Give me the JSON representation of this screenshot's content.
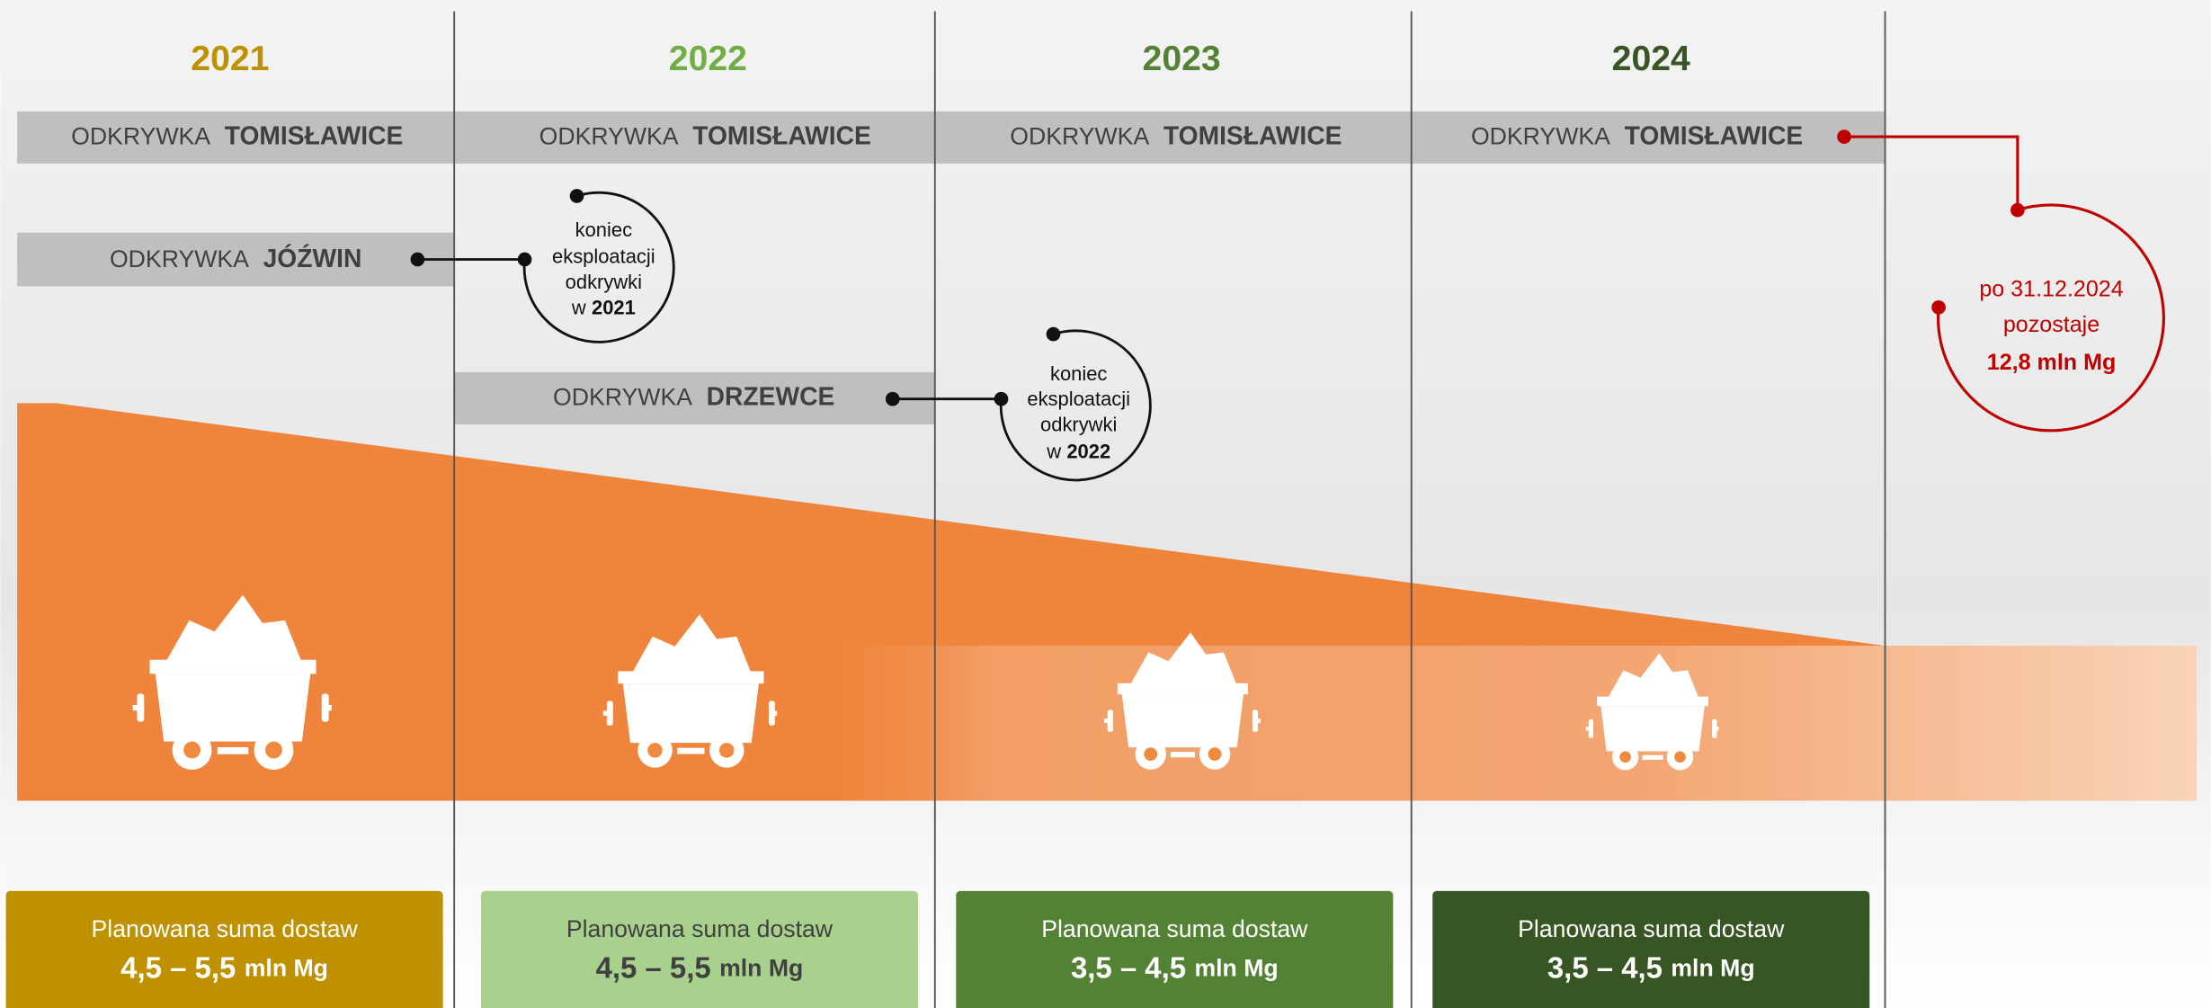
{
  "columns": [
    {
      "year": "2021",
      "mine_prefix": "ODKRYWKA",
      "mine_name": "TOMISŁAWICE",
      "planned_label": "Planowana suma dostaw",
      "planned_range": "4,5 – 5,5",
      "planned_unit": "mln Mg"
    },
    {
      "year": "2022",
      "mine_prefix": "ODKRYWKA",
      "mine_name": "TOMISŁAWICE",
      "planned_label": "Planowana suma dostaw",
      "planned_range": "4,5 – 5,5",
      "planned_unit": "mln Mg"
    },
    {
      "year": "2023",
      "mine_prefix": "ODKRYWKA",
      "mine_name": "TOMISŁAWICE",
      "planned_label": "Planowana suma dostaw",
      "planned_range": "3,5 – 4,5",
      "planned_unit": "mln Mg"
    },
    {
      "year": "2024",
      "mine_prefix": "ODKRYWKA",
      "mine_name": "TOMISŁAWICE",
      "planned_label": "Planowana suma dostaw",
      "planned_range": "3,5 – 4,5",
      "planned_unit": "mln Mg"
    }
  ],
  "other_mines": [
    {
      "prefix": "ODKRYWKA",
      "name": "JÓŹWIN"
    },
    {
      "prefix": "ODKRYWKA",
      "name": "DRZEWCE"
    }
  ],
  "end_notes": [
    {
      "lines": [
        "koniec",
        "eksploatacji",
        "odkrywki"
      ],
      "year_prefix": "w",
      "year": "2021"
    },
    {
      "lines": [
        "koniec",
        "eksploatacji",
        "odkrywki"
      ],
      "year_prefix": "w",
      "year": "2022"
    }
  ],
  "remaining": {
    "line1": "po 31.12.2024",
    "line2": "pozostaje",
    "amount": "12,8 mln Mg"
  }
}
